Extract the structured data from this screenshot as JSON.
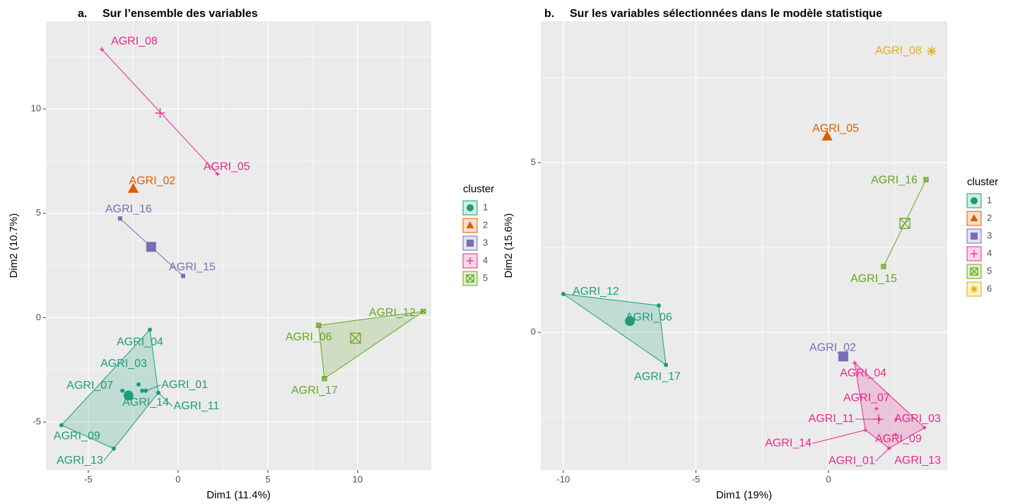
{
  "chart_data": [
    {
      "type": "scatter",
      "panel_label": "a.",
      "title": "Sur l’ensemble des variables",
      "x_label": "Dim1 (11.4%)",
      "y_label": "Dim2 (10.7%)",
      "legend_title": "cluster",
      "xlim": [
        -7.36,
        14.1
      ],
      "ylim": [
        -7.3,
        14.2
      ],
      "xticks": [
        -5,
        0,
        5,
        10
      ],
      "yticks": [
        -5,
        0,
        5,
        10
      ],
      "grid": true,
      "series": [
        {
          "name": "1",
          "color": "#1B9E77",
          "labels": [
            "AGRI_04",
            "AGRI_03",
            "AGRI_07",
            "AGRI_01",
            "AGRI_14",
            "AGRI_11",
            "AGRI_09",
            "AGRI_13"
          ],
          "x": [
            -1.57,
            -2.2,
            -3.1,
            -1.8,
            -2.0,
            -1.1,
            -6.5,
            -3.58
          ],
          "y": [
            -0.58,
            -3.2,
            -3.5,
            -3.5,
            -3.5,
            -3.6,
            -5.15,
            -6.27
          ],
          "center": [
            -2.76,
            -3.73
          ]
        },
        {
          "name": "2",
          "color": "#D95F02",
          "labels": [
            "AGRI_02"
          ],
          "x": [
            -2.5
          ],
          "y": [
            6.17
          ]
        },
        {
          "name": "3",
          "color": "#7570B3",
          "labels": [
            "AGRI_16",
            "AGRI_15"
          ],
          "x": [
            -3.23,
            0.28
          ],
          "y": [
            4.75,
            2.0
          ],
          "center": [
            -1.5,
            3.39
          ]
        },
        {
          "name": "4",
          "color": "#E7298A",
          "labels": [
            "AGRI_08",
            "AGRI_05"
          ],
          "x": [
            -4.25,
            2.2
          ],
          "y": [
            12.85,
            6.88
          ],
          "center": [
            -1.0,
            9.8
          ]
        },
        {
          "name": "5",
          "color": "#66A61E",
          "labels": [
            "AGRI_06",
            "AGRI_12",
            "AGRI_17"
          ],
          "x": [
            7.83,
            13.66,
            8.15
          ],
          "y": [
            -0.37,
            0.3,
            -2.92
          ],
          "center": [
            9.88,
            -0.98
          ]
        }
      ]
    },
    {
      "type": "scatter",
      "panel_label": "b.",
      "title": "Sur les variables sélectionnées dans le modèle statistique",
      "x_label": "Dim1 (19%)",
      "y_label": "Dim2 (15.6%)",
      "legend_title": "cluster",
      "xlim": [
        -10.85,
        4.48
      ],
      "ylim": [
        -4.06,
        9.17
      ],
      "xticks": [
        -10,
        -5,
        0
      ],
      "yticks": [
        0,
        5
      ],
      "grid": true,
      "series": [
        {
          "name": "1",
          "color": "#1B9E77",
          "labels": [
            "AGRI_12",
            "AGRI_06",
            "AGRI_17"
          ],
          "x": [
            -10.0,
            -6.4,
            -6.13
          ],
          "y": [
            1.13,
            0.79,
            -0.96
          ],
          "center": [
            -7.49,
            0.33
          ]
        },
        {
          "name": "2",
          "color": "#D95F02",
          "labels": [
            "AGRI_05"
          ],
          "x": [
            -0.05
          ],
          "y": [
            5.77
          ]
        },
        {
          "name": "3",
          "color": "#7570B3",
          "labels": [
            "AGRI_02"
          ],
          "x": [
            0.56
          ],
          "y": [
            -0.71
          ]
        },
        {
          "name": "4",
          "color": "#E7298A",
          "labels": [
            "AGRI_04",
            "AGRI_07",
            "AGRI_03",
            "AGRI_11",
            "AGRI_14",
            "AGRI_09",
            "AGRI_01",
            "AGRI_13"
          ],
          "x": [
            0.99,
            1.81,
            2.56,
            1.92,
            1.39,
            2.53,
            2.29,
            3.63
          ],
          "y": [
            -0.9,
            -2.25,
            -2.56,
            -2.56,
            -2.88,
            -3.02,
            -3.42,
            -2.81
          ],
          "center": [
            1.89,
            -2.56
          ]
        },
        {
          "name": "5",
          "color": "#66A61E",
          "labels": [
            "AGRI_16",
            "AGRI_15"
          ],
          "x": [
            3.68,
            2.08
          ],
          "y": [
            4.5,
            1.94
          ],
          "center": [
            2.88,
            3.21
          ]
        },
        {
          "name": "6",
          "color": "#E6AB02",
          "labels": [
            "AGRI_08"
          ],
          "x": [
            3.89
          ],
          "y": [
            8.29
          ]
        }
      ]
    }
  ]
}
